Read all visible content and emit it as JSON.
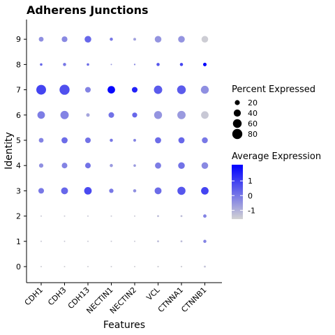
{
  "chart_data": {
    "type": "dot",
    "title": "Adherens Junctions",
    "xlabel": "Features",
    "ylabel": "Identity",
    "categories": [
      "CDH1",
      "CDH3",
      "CDH13",
      "NECTIN1",
      "NECTIN2",
      "VCL",
      "CTNNA1",
      "CTNNB1"
    ],
    "identities": [
      "0",
      "1",
      "2",
      "3",
      "4",
      "5",
      "6",
      "7",
      "8",
      "9"
    ],
    "percent_expressed": [
      [
        1,
        1,
        1,
        1,
        1,
        2,
        2,
        3
      ],
      [
        1,
        1,
        1,
        1,
        1,
        3,
        3,
        8
      ],
      [
        1,
        1,
        1,
        1,
        1,
        3,
        3,
        9
      ],
      [
        25,
        38,
        45,
        15,
        8,
        38,
        52,
        45
      ],
      [
        15,
        25,
        25,
        8,
        5,
        30,
        35,
        35
      ],
      [
        18,
        30,
        25,
        8,
        6,
        30,
        30,
        28
      ],
      [
        45,
        55,
        10,
        25,
        20,
        50,
        55,
        45
      ],
      [
        75,
        80,
        25,
        45,
        25,
        55,
        60,
        50
      ],
      [
        5,
        8,
        5,
        1,
        2,
        8,
        8,
        10
      ],
      [
        18,
        26,
        35,
        8,
        6,
        35,
        35,
        35
      ]
    ],
    "average_expression": [
      [
        -1.5,
        -1.5,
        -1.5,
        -1.5,
        -1.5,
        -1.5,
        -1.5,
        -1.3
      ],
      [
        -1.4,
        -1.4,
        -1.4,
        -1.4,
        -1.4,
        -1.2,
        -1.2,
        -0.2
      ],
      [
        -1.4,
        -1.4,
        -1.4,
        -1.4,
        -1.4,
        -1.2,
        -1.2,
        -0.2
      ],
      [
        0.0,
        0.3,
        0.8,
        0.0,
        -0.4,
        0.2,
        0.6,
        0.9
      ],
      [
        -0.4,
        -0.2,
        0.1,
        -0.6,
        -0.6,
        -0.1,
        0.1,
        -0.3
      ],
      [
        -0.2,
        0.2,
        0.1,
        0.0,
        -0.2,
        0.2,
        0.3,
        0.0
      ],
      [
        -0.1,
        -0.2,
        -0.8,
        0.1,
        0.3,
        -0.5,
        -0.6,
        -1.4
      ],
      [
        0.9,
        0.7,
        -0.2,
        2.0,
        1.5,
        0.5,
        0.5,
        -0.4
      ],
      [
        0.3,
        0.0,
        0.2,
        -0.6,
        -0.3,
        0.6,
        0.9,
        2.0
      ],
      [
        -0.4,
        -0.3,
        0.3,
        0.0,
        -0.7,
        -0.5,
        -0.5,
        -1.5
      ]
    ],
    "size_legend": {
      "title": "Percent Expressed",
      "values": [
        20,
        40,
        60,
        80
      ],
      "labels": [
        "20",
        "40",
        "60",
        "80"
      ]
    },
    "color_legend": {
      "title": "Average Expression",
      "min": -1.6,
      "max": 2.1,
      "ticks": [
        1,
        0,
        -1
      ],
      "labels": [
        "1",
        "0",
        "-1"
      ],
      "low_color": "#d3d3d3",
      "high_color": "#0000ff"
    },
    "legend_position": "right",
    "grid": false
  }
}
